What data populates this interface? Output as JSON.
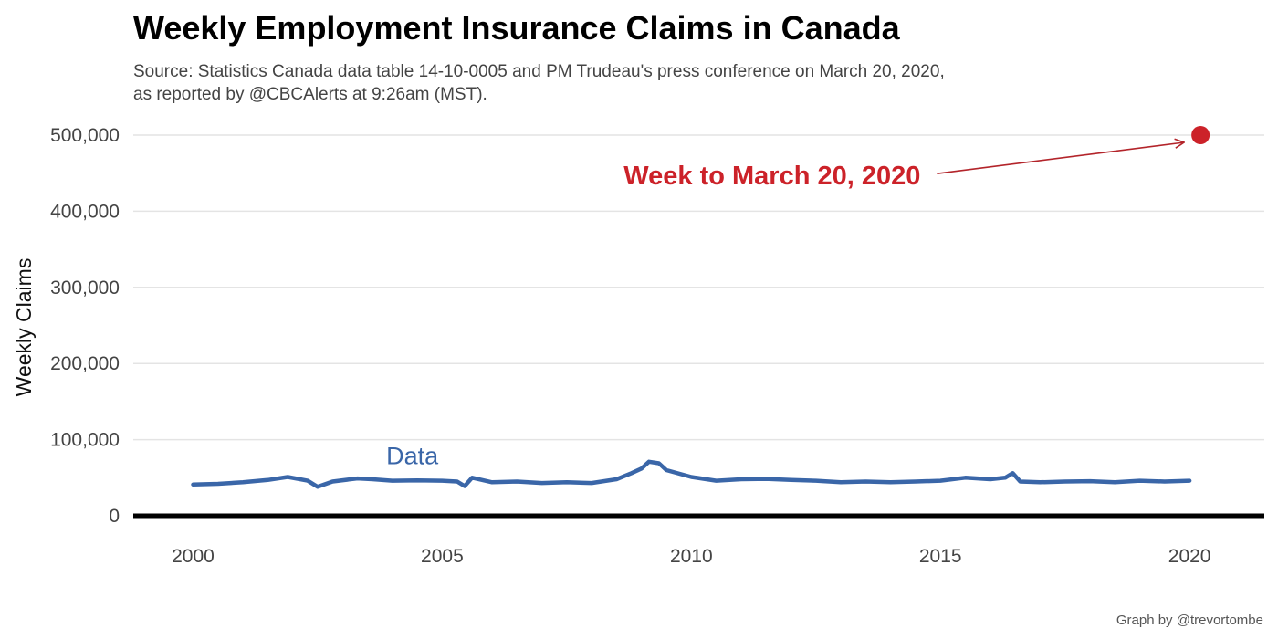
{
  "chart_data": {
    "type": "line",
    "title": "Weekly Employment Insurance Claims in Canada",
    "subtitle_lines": [
      "Source: Statistics Canada data table 14-10-0005 and PM Trudeau's press conference on March 20, 2020,",
      "as reported by @CBCAlerts at 9:26am (MST)."
    ],
    "caption": "Graph by @trevortombe",
    "xlabel": "",
    "ylabel": "Weekly Claims",
    "xlim": [
      1998.8,
      2021.5
    ],
    "ylim": [
      0,
      500000
    ],
    "x_ticks": [
      2000,
      2005,
      2010,
      2015,
      2020
    ],
    "x_tick_labels": [
      "2000",
      "2005",
      "2010",
      "2015",
      "2020"
    ],
    "y_ticks": [
      0,
      100000,
      200000,
      300000,
      400000,
      500000
    ],
    "y_tick_labels": [
      "0",
      "100,000",
      "200,000",
      "300,000",
      "400,000",
      "500,000"
    ],
    "grid": "horizontal",
    "series": [
      {
        "name": "Data",
        "color": "#3a66a8",
        "x": [
          2000.0,
          2000.5,
          2001.0,
          2001.5,
          2001.9,
          2002.3,
          2002.5,
          2002.8,
          2003.3,
          2003.6,
          2004.0,
          2004.5,
          2005.0,
          2005.3,
          2005.45,
          2005.6,
          2006.0,
          2006.5,
          2007.0,
          2007.5,
          2008.0,
          2008.5,
          2008.8,
          2009.0,
          2009.15,
          2009.35,
          2009.5,
          2010.0,
          2010.5,
          2011.0,
          2011.5,
          2012.0,
          2012.5,
          2013.0,
          2013.5,
          2014.0,
          2014.5,
          2015.0,
          2015.5,
          2016.0,
          2016.3,
          2016.45,
          2016.6,
          2017.0,
          2017.5,
          2018.0,
          2018.5,
          2019.0,
          2019.5,
          2020.0
        ],
        "y": [
          41000,
          42000,
          44000,
          47000,
          51000,
          46000,
          38000,
          45000,
          49000,
          48000,
          46000,
          46500,
          46000,
          45000,
          39000,
          50000,
          44000,
          45000,
          43000,
          44000,
          43000,
          48000,
          56000,
          62000,
          71000,
          69000,
          60000,
          51000,
          46000,
          48000,
          48500,
          47000,
          46000,
          44000,
          45000,
          44000,
          45000,
          46000,
          50000,
          48000,
          50000,
          56000,
          45000,
          44000,
          45000,
          45500,
          44000,
          46000,
          45000,
          46000
        ]
      }
    ],
    "highlight_point": {
      "x": 2020.22,
      "y": 500000,
      "color": "#cc2229"
    },
    "annotations": [
      {
        "text": "Week to March 20, 2020",
        "x": 2014.6,
        "y": 447000,
        "color": "#cc2229"
      }
    ],
    "legend": "none"
  }
}
